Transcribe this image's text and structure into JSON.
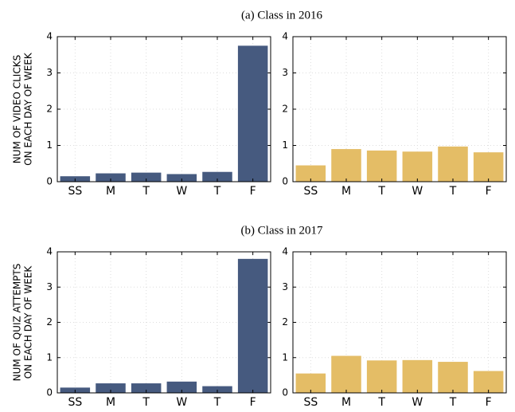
{
  "chart_data": [
    {
      "type": "bar",
      "title": "(a) Class in 2016",
      "ylabel": [
        "NUM OF VIDEO CLICKS",
        "ON EACH DAY OF WEEK"
      ],
      "categories": [
        "SS",
        "M",
        "T",
        "W",
        "T",
        "F"
      ],
      "values": [
        0.15,
        0.23,
        0.25,
        0.21,
        0.27,
        3.75
      ],
      "color": "#465a7f",
      "ylim": [
        0,
        4
      ],
      "yticks": [
        0,
        1,
        2,
        3,
        4
      ],
      "grid": true
    },
    {
      "type": "bar",
      "categories": [
        "SS",
        "M",
        "T",
        "W",
        "T",
        "F"
      ],
      "values": [
        0.45,
        0.9,
        0.86,
        0.83,
        0.97,
        0.81
      ],
      "color": "#e4bd66",
      "ylim": [
        0,
        4
      ],
      "yticks": [
        0,
        1,
        2,
        3,
        4
      ],
      "grid": true
    },
    {
      "type": "bar",
      "title": "(b) Class in 2017",
      "ylabel": [
        "NUM OF QUIZ ATTEMPTS",
        "ON EACH DAY OF WEEK"
      ],
      "categories": [
        "SS",
        "M",
        "T",
        "W",
        "T",
        "F"
      ],
      "values": [
        0.15,
        0.27,
        0.27,
        0.32,
        0.19,
        3.8
      ],
      "color": "#465a7f",
      "ylim": [
        0,
        4
      ],
      "yticks": [
        0,
        1,
        2,
        3,
        4
      ],
      "grid": true
    },
    {
      "type": "bar",
      "categories": [
        "SS",
        "M",
        "T",
        "W",
        "T",
        "F"
      ],
      "values": [
        0.55,
        1.05,
        0.92,
        0.93,
        0.88,
        0.62
      ],
      "color": "#e4bd66",
      "ylim": [
        0,
        4
      ],
      "yticks": [
        0,
        1,
        2,
        3,
        4
      ],
      "grid": true
    }
  ]
}
